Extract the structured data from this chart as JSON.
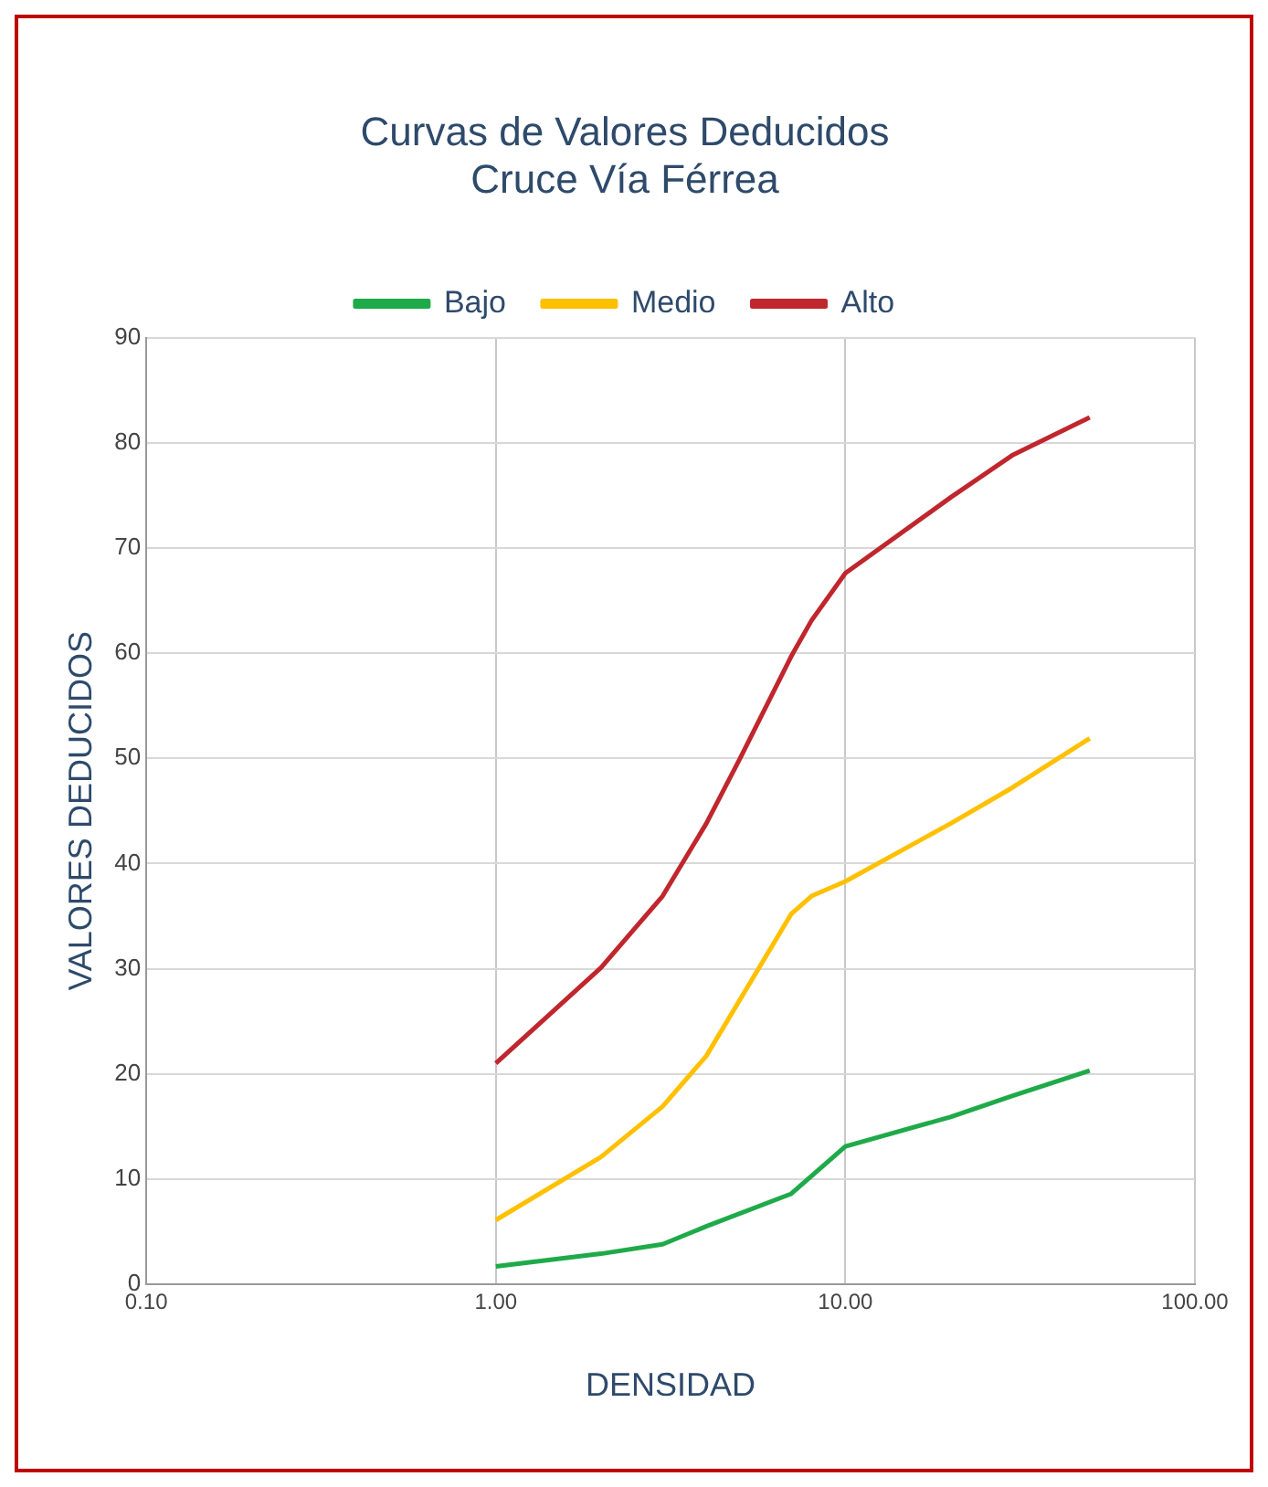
{
  "chart_data": {
    "type": "line",
    "title": "Curvas de Valores Deducidos",
    "subtitle": "Cruce Vía Férrea",
    "xlabel": "DENSIDAD",
    "ylabel": "VALORES DEDUCIDOS",
    "log": "x",
    "xlim": [
      0.1,
      100
    ],
    "xticks": [
      {
        "value": 0.1,
        "label": "0.10"
      },
      {
        "value": 1,
        "label": "1.00"
      },
      {
        "value": 10,
        "label": "10.00"
      },
      {
        "value": 100,
        "label": "100.00"
      }
    ],
    "ylim": [
      0,
      90
    ],
    "yticks": [
      0,
      10,
      20,
      30,
      40,
      50,
      60,
      70,
      80,
      90
    ],
    "grid": true,
    "legend": "top",
    "marker": "none",
    "line_style": "solid",
    "series": [
      {
        "name": "Bajo",
        "color": "#1faa4a",
        "x": [
          1,
          2,
          3,
          4,
          7,
          10,
          20,
          30,
          50
        ],
        "values": [
          1.7,
          2.9,
          3.8,
          5.5,
          8.6,
          13.1,
          15.9,
          17.9,
          20.3
        ]
      },
      {
        "name": "Medio",
        "color": "#ffc000",
        "x": [
          1,
          2,
          3,
          4,
          7,
          8,
          10,
          20,
          30,
          50
        ],
        "values": [
          6.1,
          12.1,
          16.9,
          21.7,
          35.2,
          36.9,
          38.3,
          43.8,
          47.2,
          51.9
        ]
      },
      {
        "name": "Alto",
        "color": "#c0262d",
        "x": [
          1,
          2,
          3,
          4,
          5,
          7,
          8,
          10,
          20,
          30,
          50
        ],
        "values": [
          21,
          30.1,
          36.9,
          43.8,
          50,
          59.7,
          63.1,
          67.6,
          74.8,
          78.8,
          82.4
        ]
      }
    ]
  }
}
